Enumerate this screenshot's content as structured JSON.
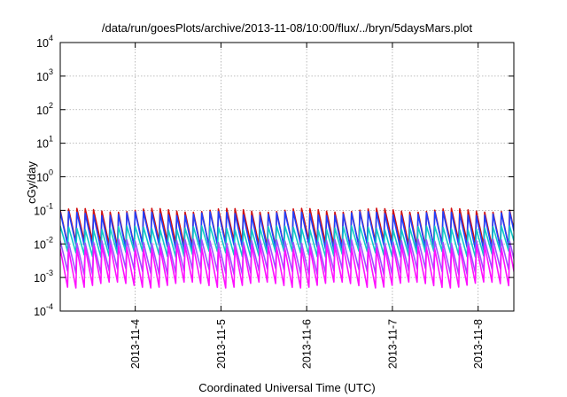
{
  "chart_data": {
    "type": "line",
    "title": "/data/run/goesPlots/archive/2013-11-08/10:00/flux/../bryn/5daysMars.plot",
    "xlabel": "Coordinated Universal Time (UTC)",
    "ylabel": "cGy/day",
    "yscale": "log",
    "ylim": [
      0.0001,
      10000
    ],
    "y_ticks": [
      {
        "value": 0.0001,
        "base": "10",
        "exp": "-4"
      },
      {
        "value": 0.001,
        "base": "10",
        "exp": "-3"
      },
      {
        "value": 0.01,
        "base": "10",
        "exp": "-2"
      },
      {
        "value": 0.1,
        "base": "10",
        "exp": "-1"
      },
      {
        "value": 1,
        "base": "10",
        "exp": "0"
      },
      {
        "value": 10,
        "base": "10",
        "exp": "1"
      },
      {
        "value": 100,
        "base": "10",
        "exp": "2"
      },
      {
        "value": 1000,
        "base": "10",
        "exp": "3"
      },
      {
        "value": 10000,
        "base": "10",
        "exp": "4"
      }
    ],
    "xlim": [
      "2013-11-03T03:00",
      "2013-11-08T10:00"
    ],
    "x_ticks": [
      "2013-11-4",
      "2013-11-5",
      "2013-11-6",
      "2013-11-7",
      "2013-11-8"
    ],
    "grid": true,
    "legend": "none",
    "series": [
      {
        "color": "#d01010",
        "peak": 0.1,
        "trough": 0.01
      },
      {
        "color": "#2040ff",
        "peak": 0.08,
        "trough": 0.008
      },
      {
        "color": "#10c8c8",
        "peak": 0.03,
        "trough": 0.005
      },
      {
        "color": "#a050ff",
        "peak": 0.012,
        "trough": 0.0015
      },
      {
        "color": "#ff10ff",
        "peak": 0.008,
        "trough": 0.0006
      }
    ],
    "cycles_per_day": 10.3
  }
}
